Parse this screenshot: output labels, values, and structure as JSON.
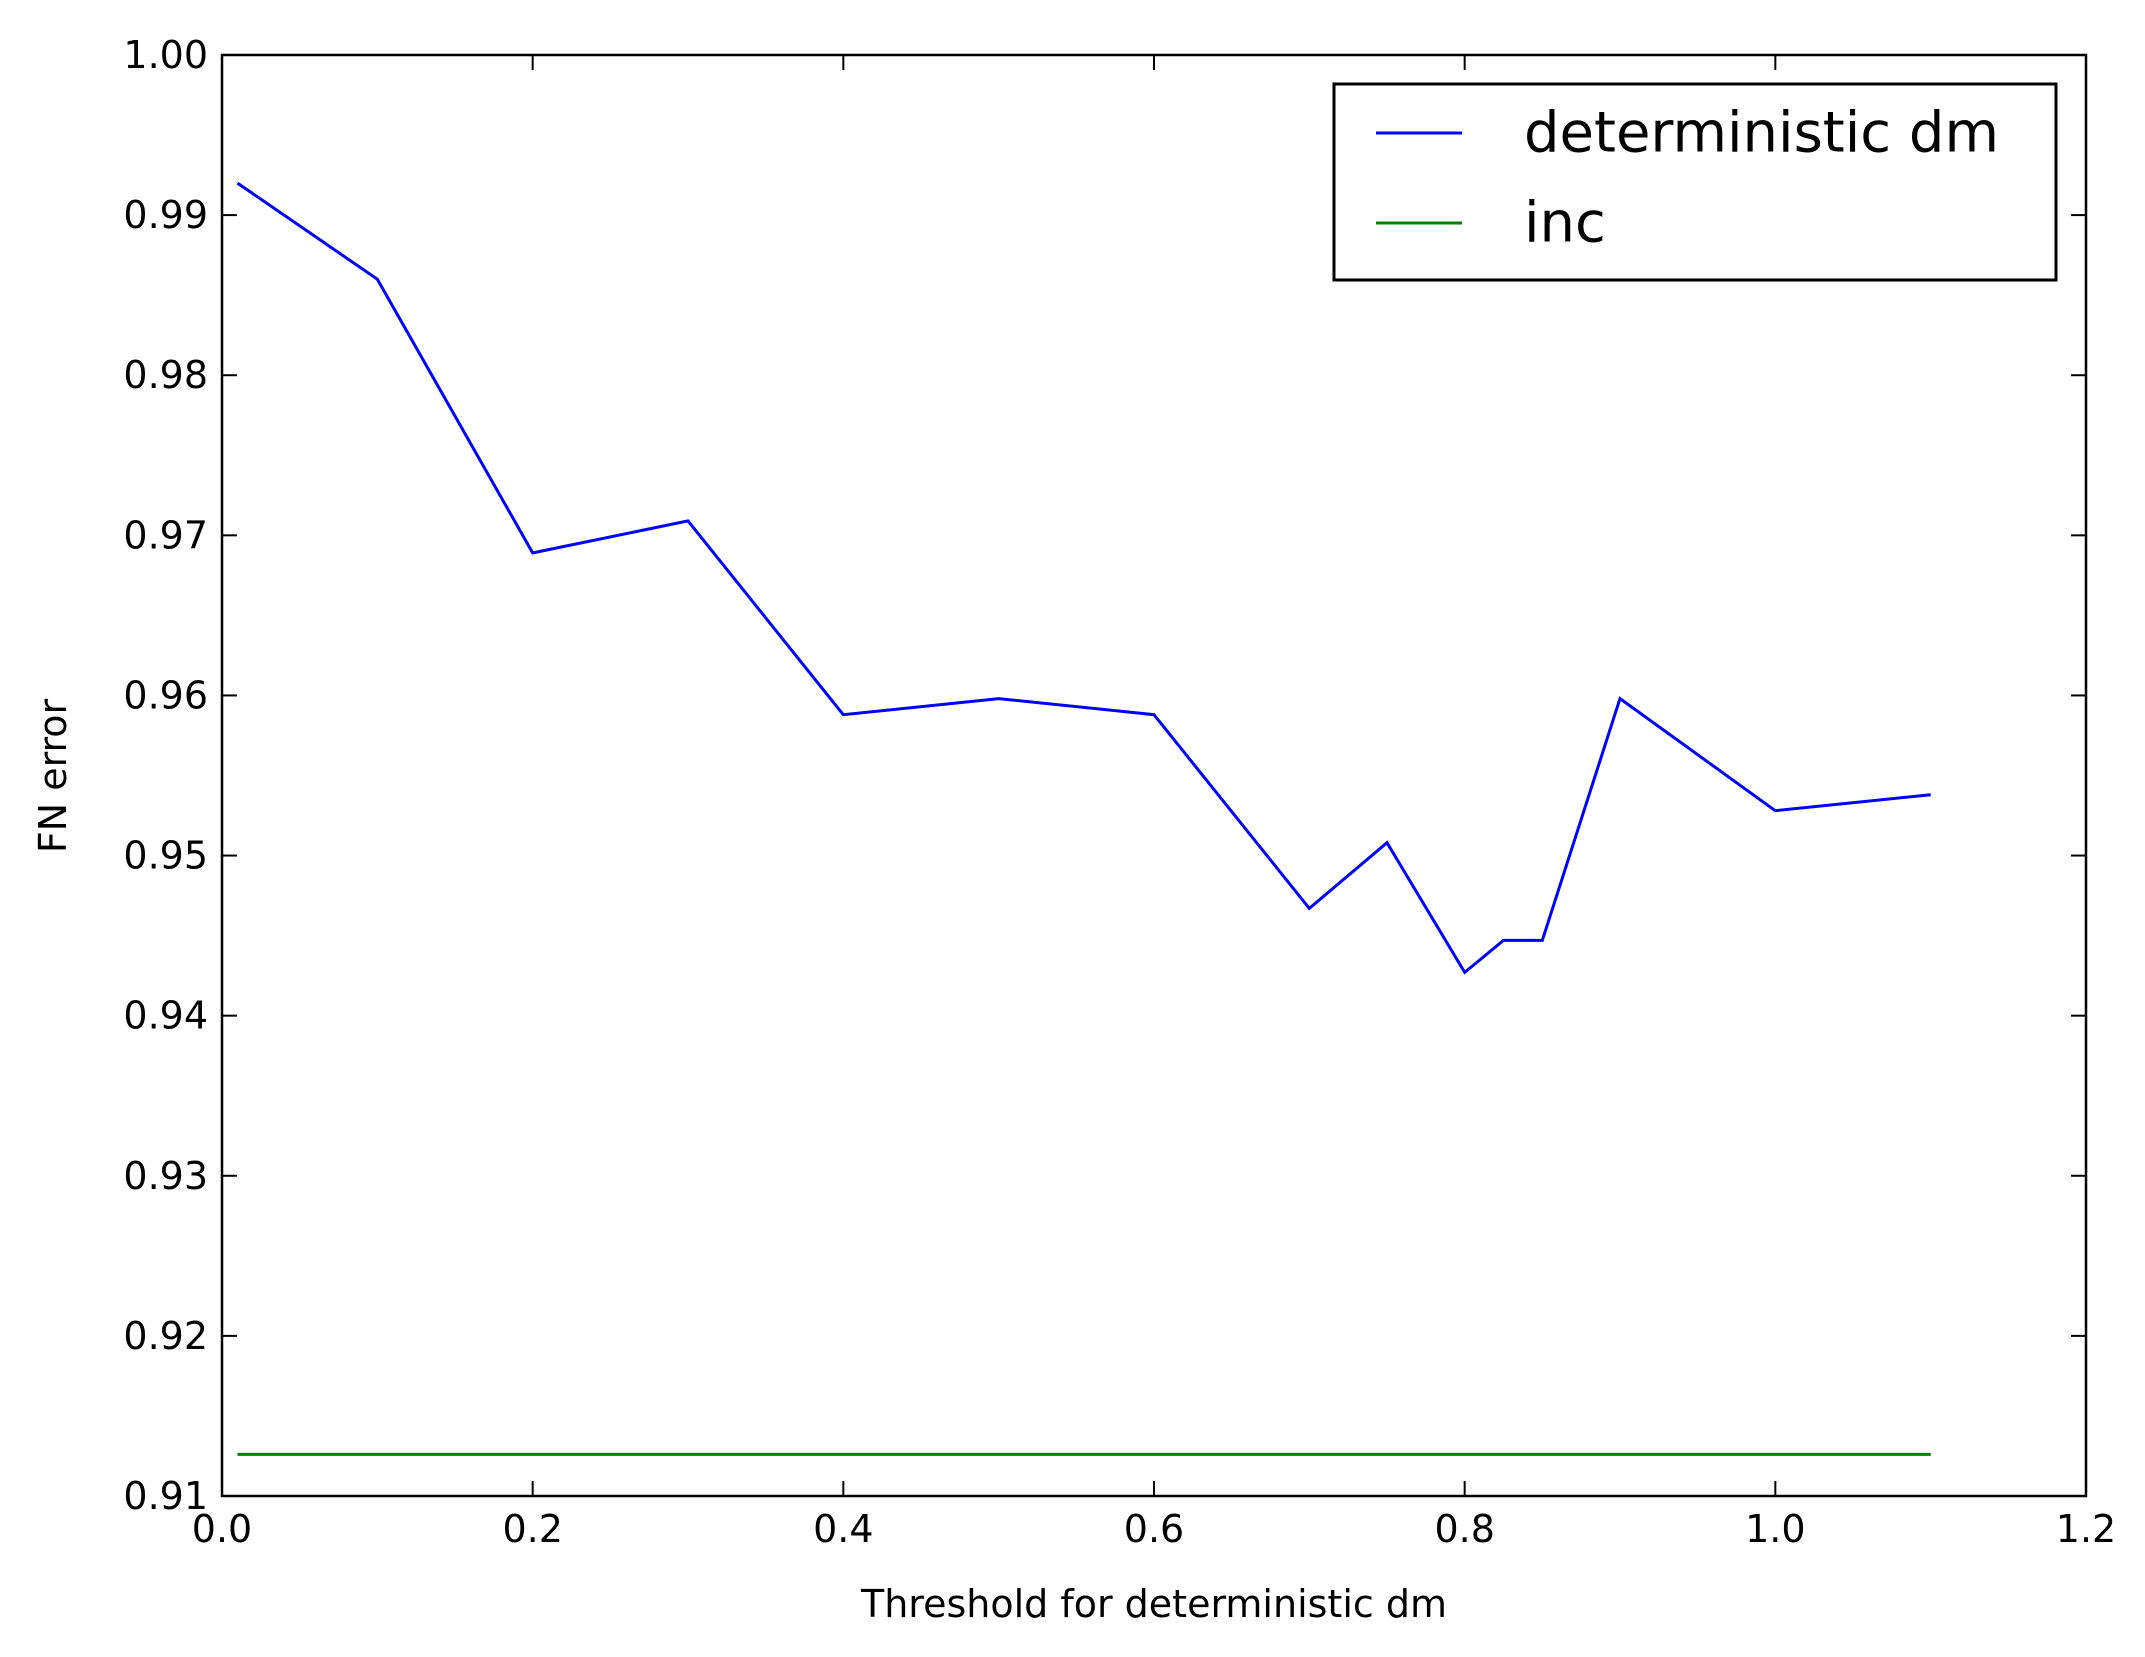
{
  "chart_data": {
    "type": "line",
    "title": "",
    "xlabel": "Threshold for deterministic dm",
    "ylabel": "FN error",
    "xlim": [
      0.0,
      1.2
    ],
    "ylim": [
      0.91,
      1.0
    ],
    "xticks": [
      "0.0",
      "0.2",
      "0.4",
      "0.6",
      "0.8",
      "1.0",
      "1.2"
    ],
    "yticks": [
      "0.91",
      "0.92",
      "0.93",
      "0.94",
      "0.95",
      "0.96",
      "0.97",
      "0.98",
      "0.99",
      "1.00"
    ],
    "grid": false,
    "legend_position": "top-right",
    "series": [
      {
        "name": "deterministic dm",
        "color": "#0000ff",
        "x": [
          0.01,
          0.1,
          0.2,
          0.3,
          0.4,
          0.5,
          0.6,
          0.7,
          0.75,
          0.8,
          0.825,
          0.85,
          0.9,
          1.0,
          1.1
        ],
        "y": [
          0.992,
          0.986,
          0.9689,
          0.9709,
          0.9588,
          0.9598,
          0.9588,
          0.9467,
          0.9508,
          0.9427,
          0.9447,
          0.9447,
          0.9598,
          0.9528,
          0.9538
        ]
      },
      {
        "name": "inc",
        "color": "#008000",
        "x": [
          0.01,
          1.1
        ],
        "y": [
          0.9126,
          0.9126
        ]
      }
    ]
  }
}
